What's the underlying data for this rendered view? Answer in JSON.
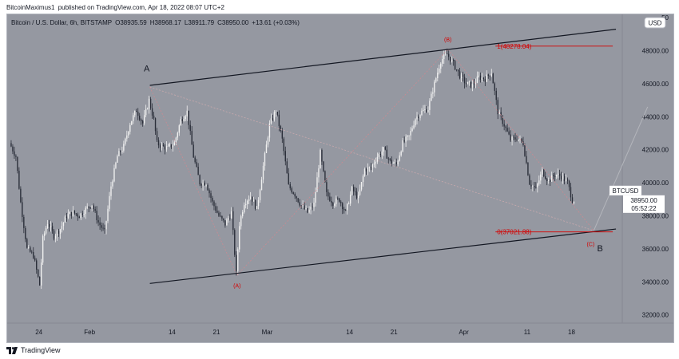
{
  "attribution": {
    "author": "BitcoinMaximus1",
    "text": "published on TradingView.com, Apr 18, 2022 08:07 UTC+2"
  },
  "footer": {
    "brand": "TradingView",
    "logo_icon": "tradingview-logo-icon"
  },
  "colors": {
    "background": "#9598a1",
    "candle_up": "#f0f0f0",
    "candle_down": "#2a2e39",
    "trendline": "#131722",
    "fib_line": "#d50000",
    "wave_label": "#d50000",
    "projection": "#b4b6bc"
  },
  "chart_data": {
    "type": "candlestick",
    "symbol_line": {
      "title": "Bitcoin / U.S. Dollar, 6h, BITSTAMP",
      "open": "O38935.59",
      "high": "H38968.17",
      "low": "L38911.79",
      "close": "C38950.00",
      "change": "+13.61 (+0.03%)"
    },
    "currency_badge": "USD",
    "price_badge": {
      "symbol": "BTCUSD",
      "price": "38950.00",
      "countdown": "05:52:22"
    },
    "y_axis": {
      "min": 31500,
      "max": 50200,
      "ticks": [
        32000,
        34000,
        36000,
        38000,
        40000,
        42000,
        44000,
        46000,
        48000
      ],
      "tick_labels": [
        "32000.00",
        "34000.00",
        "36000.00",
        "38000.00",
        "40000.00",
        "42000.00",
        "44000.00",
        "46000.00",
        "48000.00"
      ]
    },
    "x_axis": {
      "start_date": "2022-01-19",
      "end_date": "2022-04-26",
      "ticks": [
        {
          "date": "2022-01-24",
          "label": "24"
        },
        {
          "date": "2022-02-01",
          "label": "Feb"
        },
        {
          "date": "2022-02-14",
          "label": "14"
        },
        {
          "date": "2022-02-21",
          "label": "21"
        },
        {
          "date": "2022-03-01",
          "label": "Mar"
        },
        {
          "date": "2022-03-14",
          "label": "14"
        },
        {
          "date": "2022-03-21",
          "label": "21"
        },
        {
          "date": "2022-04-01",
          "label": "Apr"
        },
        {
          "date": "2022-04-11",
          "label": "11"
        },
        {
          "date": "2022-04-18",
          "label": "18"
        }
      ]
    },
    "price_path": [
      [
        "2022-01-19T12:00",
        42400
      ],
      [
        "2022-01-20T12:00",
        41600
      ],
      [
        "2022-01-21T06:00",
        38800
      ],
      [
        "2022-01-22T06:00",
        36000
      ],
      [
        "2022-01-23T06:00",
        35600
      ],
      [
        "2022-01-24T06:00",
        33800
      ],
      [
        "2022-01-24T18:00",
        36600
      ],
      [
        "2022-01-25T12:00",
        37600
      ],
      [
        "2022-01-26T12:00",
        36800
      ],
      [
        "2022-01-27T12:00",
        37200
      ],
      [
        "2022-01-28T12:00",
        38000
      ],
      [
        "2022-01-29T12:00",
        38200
      ],
      [
        "2022-01-30T12:00",
        38000
      ],
      [
        "2022-01-31T12:00",
        38400
      ],
      [
        "2022-02-01T12:00",
        38700
      ],
      [
        "2022-02-02T12:00",
        37600
      ],
      [
        "2022-02-03T12:00",
        37000
      ],
      [
        "2022-02-04T12:00",
        39800
      ],
      [
        "2022-02-05T12:00",
        41600
      ],
      [
        "2022-02-06T12:00",
        42200
      ],
      [
        "2022-02-07T12:00",
        43600
      ],
      [
        "2022-02-08T12:00",
        44400
      ],
      [
        "2022-02-09T12:00",
        43600
      ],
      [
        "2022-02-10T12:00",
        45000
      ],
      [
        "2022-02-11T06:00",
        43800
      ],
      [
        "2022-02-11T18:00",
        42400
      ],
      [
        "2022-02-12T12:00",
        42200
      ],
      [
        "2022-02-13T12:00",
        42100
      ],
      [
        "2022-02-14T12:00",
        42400
      ],
      [
        "2022-02-15T12:00",
        43800
      ],
      [
        "2022-02-16T12:00",
        44300
      ],
      [
        "2022-02-17T12:00",
        41600
      ],
      [
        "2022-02-18T12:00",
        40000
      ],
      [
        "2022-02-19T12:00",
        40000
      ],
      [
        "2022-02-20T12:00",
        38800
      ],
      [
        "2022-02-21T12:00",
        38000
      ],
      [
        "2022-02-22T12:00",
        37500
      ],
      [
        "2022-02-23T12:00",
        38200
      ],
      [
        "2022-02-24T06:00",
        34500
      ],
      [
        "2022-02-24T18:00",
        37500
      ],
      [
        "2022-02-25T12:00",
        38800
      ],
      [
        "2022-02-26T12:00",
        39200
      ],
      [
        "2022-02-27T12:00",
        38400
      ],
      [
        "2022-02-28T12:00",
        41000
      ],
      [
        "2022-03-01T12:00",
        43500
      ],
      [
        "2022-03-02T12:00",
        44400
      ],
      [
        "2022-03-03T12:00",
        42600
      ],
      [
        "2022-03-04T12:00",
        39800
      ],
      [
        "2022-03-05T12:00",
        39300
      ],
      [
        "2022-03-06T12:00",
        38600
      ],
      [
        "2022-03-07T12:00",
        38200
      ],
      [
        "2022-03-08T12:00",
        38700
      ],
      [
        "2022-03-09T12:00",
        41800
      ],
      [
        "2022-03-10T12:00",
        39300
      ],
      [
        "2022-03-11T12:00",
        38800
      ],
      [
        "2022-03-12T12:00",
        39000
      ],
      [
        "2022-03-13T12:00",
        38200
      ],
      [
        "2022-03-14T12:00",
        39600
      ],
      [
        "2022-03-15T12:00",
        39100
      ],
      [
        "2022-03-16T12:00",
        40800
      ],
      [
        "2022-03-17T12:00",
        40900
      ],
      [
        "2022-03-18T12:00",
        41600
      ],
      [
        "2022-03-19T12:00",
        42000
      ],
      [
        "2022-03-20T12:00",
        41300
      ],
      [
        "2022-03-21T12:00",
        41100
      ],
      [
        "2022-03-22T12:00",
        42400
      ],
      [
        "2022-03-23T12:00",
        42800
      ],
      [
        "2022-03-24T12:00",
        43900
      ],
      [
        "2022-03-25T12:00",
        44300
      ],
      [
        "2022-03-26T12:00",
        44500
      ],
      [
        "2022-03-27T12:00",
        46000
      ],
      [
        "2022-03-28T12:00",
        47400
      ],
      [
        "2022-03-29T12:00",
        47800
      ],
      [
        "2022-03-30T12:00",
        47200
      ],
      [
        "2022-03-31T12:00",
        46500
      ],
      [
        "2022-04-01T12:00",
        46000
      ],
      [
        "2022-04-02T12:00",
        45900
      ],
      [
        "2022-04-03T12:00",
        46400
      ],
      [
        "2022-04-04T12:00",
        46300
      ],
      [
        "2022-04-05T12:00",
        46700
      ],
      [
        "2022-04-06T12:00",
        44300
      ],
      [
        "2022-04-07T12:00",
        43500
      ],
      [
        "2022-04-08T12:00",
        42600
      ],
      [
        "2022-04-09T12:00",
        42700
      ],
      [
        "2022-04-10T12:00",
        42400
      ],
      [
        "2022-04-11T12:00",
        40000
      ],
      [
        "2022-04-12T12:00",
        39600
      ],
      [
        "2022-04-13T12:00",
        40700
      ],
      [
        "2022-04-14T12:00",
        40100
      ],
      [
        "2022-04-15T12:00",
        40500
      ],
      [
        "2022-04-16T12:00",
        40400
      ],
      [
        "2022-04-17T12:00",
        40000
      ],
      [
        "2022-04-18T06:00",
        38950
      ]
    ],
    "trendlines": [
      {
        "from": [
          "2022-02-10T12:00",
          45900
        ],
        "to": [
          "2022-04-25T00:00",
          49300
        ]
      },
      {
        "from": [
          "2022-02-10T12:00",
          33900
        ],
        "to": [
          "2022-04-25T00:00",
          37200
        ]
      }
    ],
    "fib_levels": [
      {
        "label": "1(48278.04)",
        "value": 48278.04,
        "from": "2022-04-06T00:00",
        "to": "2022-04-24T12:00"
      },
      {
        "label": "0(37021.88)",
        "value": 37021.88,
        "from": "2022-04-06T00:00",
        "to": "2022-04-24T12:00"
      }
    ],
    "wave_path": [
      [
        "2022-02-10T12:00",
        45800
      ],
      [
        "2022-02-24T06:00",
        34400
      ],
      [
        "2022-03-29T12:00",
        48100
      ],
      [
        "2022-04-21T12:00",
        37100
      ]
    ],
    "channel_midline": {
      "from": [
        "2022-02-10T12:00",
        45800
      ],
      "to": [
        "2022-04-21T12:00",
        37100
      ]
    },
    "projection": {
      "from": [
        "2022-04-21T12:00",
        37100
      ],
      "to": [
        "2022-04-30T00:00",
        44600
      ]
    },
    "wave_labels": [
      {
        "text": "A",
        "date": "2022-02-10T00:00",
        "value": 46900,
        "color": "black"
      },
      {
        "text": "(A)",
        "date": "2022-02-24T06:00",
        "value": 33800,
        "color": "red"
      },
      {
        "text": "(B)",
        "date": "2022-03-29T12:00",
        "value": 48700,
        "color": "red"
      },
      {
        "text": "(C)",
        "date": "2022-04-21T00:00",
        "value": 36300,
        "color": "red"
      },
      {
        "text": "B",
        "date": "2022-04-22T12:00",
        "value": 36000,
        "color": "black"
      }
    ]
  }
}
